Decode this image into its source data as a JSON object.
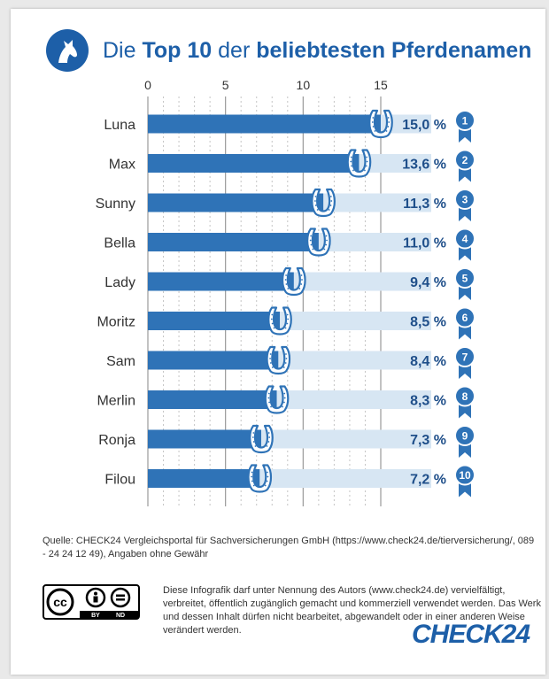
{
  "header": {
    "title_pre": "Die ",
    "title_top": "Top 10",
    "title_mid": " der ",
    "title_bold": "beliebtesten Pferdenamen",
    "logo_icon": "horse-head-icon"
  },
  "chart_data": {
    "type": "bar",
    "orientation": "horizontal",
    "categories": [
      "Luna",
      "Max",
      "Sunny",
      "Bella",
      "Lady",
      "Moritz",
      "Sam",
      "Merlin",
      "Ronja",
      "Filou"
    ],
    "values": [
      15.0,
      13.6,
      11.3,
      11.0,
      9.4,
      8.5,
      8.4,
      8.3,
      7.3,
      7.2
    ],
    "value_labels": [
      "15,0 %",
      "13,6 %",
      "11,3 %",
      "11,0 %",
      "9,4 %",
      "8,5 %",
      "8,4 %",
      "8,3 %",
      "7,3 %",
      "7,2 %"
    ],
    "ranks": [
      "1",
      "2",
      "3",
      "4",
      "5",
      "6",
      "7",
      "8",
      "9",
      "10"
    ],
    "xticks": [
      0,
      5,
      10,
      15
    ],
    "xtick_labels": [
      "0",
      "5",
      "10",
      "15"
    ],
    "xlim": [
      0,
      15
    ],
    "grid": true,
    "colors": {
      "bar": "#2f73b7",
      "track": "#d7e6f3",
      "label": "#1f4f8a",
      "badge": "#2f73b7"
    },
    "mark_icons": [
      "horseshoe-icon",
      "ribbon-badge-icon"
    ]
  },
  "footer": {
    "source": "Quelle: CHECK24 Vergleichsportal für Sachversicherungen GmbH (https://www.check24.de/tierversicherung/, 089 - 24 24 12 49), Angaben ohne Gewähr",
    "license": "Diese Infografik darf unter Nennung des Autors (www.check24.de) vervielfältigt, verbreitet, öffentlich zugänglich gemacht und kommerziell verwendet werden. Das Werk und dessen Inhalt dürfen nicht bearbeitet, abgewandelt oder in einer anderen Weise verändert werden.",
    "cc_icon": "cc-by-nd-icon",
    "cc_by": "BY",
    "cc_nd": "ND",
    "brand": "CHECK24"
  }
}
